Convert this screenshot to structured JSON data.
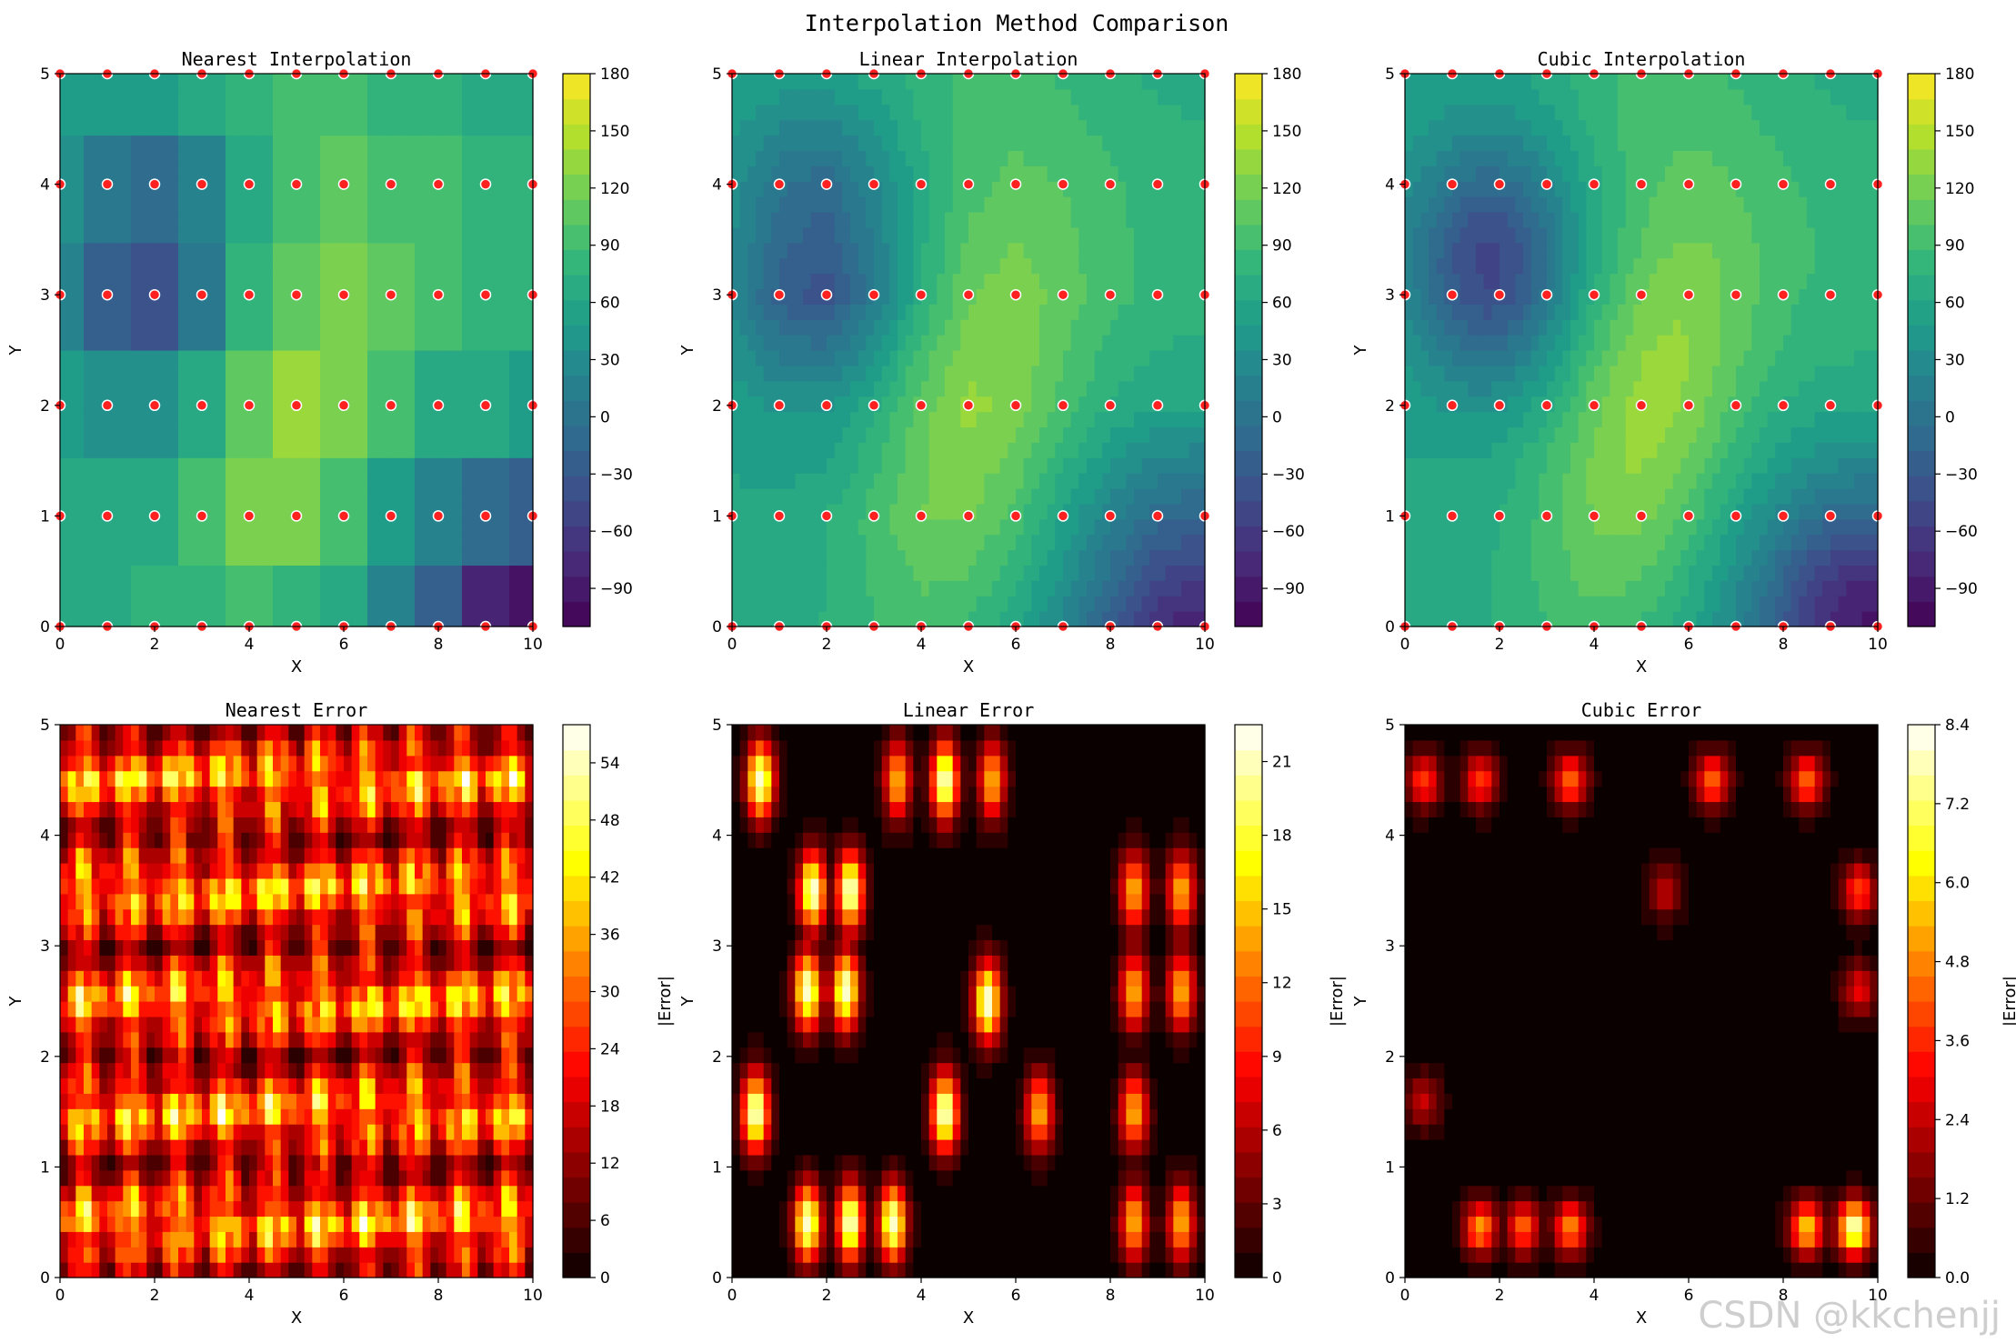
{
  "figure": {
    "suptitle": "Interpolation Method Comparison",
    "watermark": "CSDN @kkchenjj"
  },
  "chart_data": [
    {
      "type": "heatmap",
      "id": "nearest-interp",
      "title": "Nearest Interpolation",
      "xlabel": "X",
      "ylabel": "Y",
      "xlim": [
        0,
        10
      ],
      "ylim": [
        0,
        5
      ],
      "xticks": [
        "0",
        "2",
        "4",
        "6",
        "8",
        "10"
      ],
      "yticks": [
        "0",
        "1",
        "2",
        "3",
        "4",
        "5"
      ],
      "colormap": "viridis",
      "method": "nearest",
      "colorbar": {
        "range": [
          -110,
          180
        ],
        "ticks": [
          "180",
          "150",
          "120",
          "90",
          "60",
          "30",
          "0",
          "−30",
          "−60",
          "−90"
        ],
        "label": ""
      },
      "sample_points": {
        "x": [
          0,
          1,
          2,
          3,
          4,
          5,
          6,
          7,
          8,
          9,
          10
        ],
        "y": [
          0,
          1,
          2,
          3,
          4,
          5
        ],
        "color": "#ff2020"
      }
    },
    {
      "type": "heatmap",
      "id": "linear-interp",
      "title": "Linear Interpolation",
      "xlabel": "X",
      "ylabel": "Y",
      "xlim": [
        0,
        10
      ],
      "ylim": [
        0,
        5
      ],
      "xticks": [
        "0",
        "2",
        "4",
        "6",
        "8",
        "10"
      ],
      "yticks": [
        "0",
        "1",
        "2",
        "3",
        "4",
        "5"
      ],
      "colormap": "viridis",
      "method": "linear",
      "colorbar": {
        "range": [
          -110,
          180
        ],
        "ticks": [
          "180",
          "150",
          "120",
          "90",
          "60",
          "30",
          "0",
          "−30",
          "−60",
          "−90"
        ],
        "label": ""
      },
      "sample_points": {
        "x": [
          0,
          1,
          2,
          3,
          4,
          5,
          6,
          7,
          8,
          9,
          10
        ],
        "y": [
          0,
          1,
          2,
          3,
          4,
          5
        ],
        "color": "#ff2020"
      }
    },
    {
      "type": "heatmap",
      "id": "cubic-interp",
      "title": "Cubic Interpolation",
      "xlabel": "X",
      "ylabel": "Y",
      "xlim": [
        0,
        10
      ],
      "ylim": [
        0,
        5
      ],
      "xticks": [
        "0",
        "2",
        "4",
        "6",
        "8",
        "10"
      ],
      "yticks": [
        "0",
        "1",
        "2",
        "3",
        "4",
        "5"
      ],
      "colormap": "viridis",
      "method": "cubic",
      "colorbar": {
        "range": [
          -110,
          180
        ],
        "ticks": [
          "180",
          "150",
          "120",
          "90",
          "60",
          "30",
          "0",
          "−30",
          "−60",
          "−90"
        ],
        "label": ""
      },
      "sample_points": {
        "x": [
          0,
          1,
          2,
          3,
          4,
          5,
          6,
          7,
          8,
          9,
          10
        ],
        "y": [
          0,
          1,
          2,
          3,
          4,
          5
        ],
        "color": "#ff2020"
      }
    },
    {
      "type": "heatmap",
      "id": "nearest-error",
      "title": "Nearest Error",
      "xlabel": "X",
      "ylabel": "Y",
      "xlim": [
        0,
        10
      ],
      "ylim": [
        0,
        5
      ],
      "xticks": [
        "0",
        "2",
        "4",
        "6",
        "8",
        "10"
      ],
      "yticks": [
        "0",
        "1",
        "2",
        "3",
        "4",
        "5"
      ],
      "colormap": "hot",
      "method": "nearest-error",
      "colorbar": {
        "range": [
          0,
          58
        ],
        "ticks": [
          "54",
          "48",
          "42",
          "36",
          "30",
          "24",
          "18",
          "12",
          "6",
          "0"
        ],
        "label": "|Error|"
      }
    },
    {
      "type": "heatmap",
      "id": "linear-error",
      "title": "Linear Error",
      "xlabel": "X",
      "ylabel": "Y",
      "xlim": [
        0,
        10
      ],
      "ylim": [
        0,
        5
      ],
      "xticks": [
        "0",
        "2",
        "4",
        "6",
        "8",
        "10"
      ],
      "yticks": [
        "0",
        "1",
        "2",
        "3",
        "4",
        "5"
      ],
      "colormap": "hot",
      "method": "linear-error",
      "colorbar": {
        "range": [
          0,
          22.5
        ],
        "ticks": [
          "21",
          "18",
          "15",
          "12",
          "9",
          "6",
          "3",
          "0"
        ],
        "label": "|Error|"
      }
    },
    {
      "type": "heatmap",
      "id": "cubic-error",
      "title": "Cubic Error",
      "xlabel": "X",
      "ylabel": "Y",
      "xlim": [
        0,
        10
      ],
      "ylim": [
        0,
        5
      ],
      "xticks": [
        "0",
        "2",
        "4",
        "6",
        "8",
        "10"
      ],
      "yticks": [
        "0",
        "1",
        "2",
        "3",
        "4",
        "5"
      ],
      "colormap": "hot",
      "method": "cubic-error",
      "colorbar": {
        "range": [
          0,
          8.4
        ],
        "ticks": [
          "8.4",
          "7.2",
          "6.0",
          "4.8",
          "3.6",
          "2.4",
          "1.2",
          "0.0"
        ],
        "label": "|Error|"
      }
    }
  ]
}
